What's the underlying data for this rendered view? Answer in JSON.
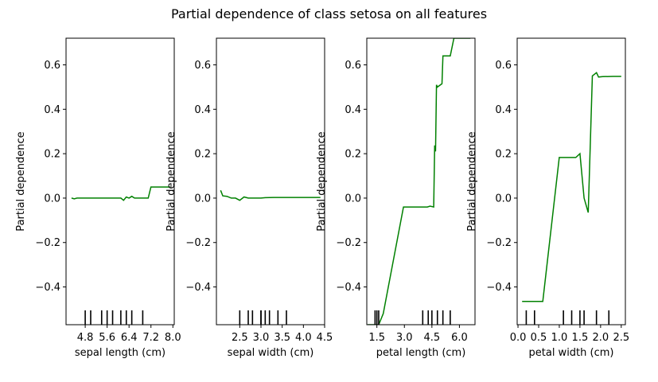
{
  "chart_data": {
    "suptitle": "Partial dependence of class setosa on all features",
    "type": "line",
    "line_color": "#008000",
    "grid": false,
    "legend": "none",
    "charts": [
      {
        "type": "line",
        "xlabel": "sepal length (cm)",
        "ylabel": "Partial dependence",
        "xlim": [
          4.1,
          8.05
        ],
        "ylim": [
          -0.57,
          0.72
        ],
        "xticks": [
          4.8,
          5.6,
          6.4,
          7.2,
          8.0
        ],
        "xtick_labels": [
          "4.8",
          "5.6",
          "6.4",
          "7.2",
          "8.0"
        ],
        "yticks": [
          -0.4,
          -0.2,
          0.0,
          0.2,
          0.4,
          0.6
        ],
        "ytick_labels": [
          "−0.4",
          "−0.2",
          "0.0",
          "0.2",
          "0.4",
          "0.6"
        ],
        "x": [
          4.3,
          4.4,
          4.5,
          4.9,
          5.3,
          5.7,
          6.1,
          6.2,
          6.3,
          6.4,
          6.5,
          6.6,
          6.7,
          6.9,
          7.1,
          7.2,
          7.3,
          7.9
        ],
        "y": [
          0.0,
          -0.003,
          0.0,
          0.0,
          0.0,
          0.0,
          0.0,
          -0.01,
          0.005,
          0.0,
          0.008,
          0.0,
          0.0,
          0.0,
          0.0,
          0.05,
          0.05,
          0.05
        ],
        "deciles": [
          4.8,
          5.0,
          5.4,
          5.6,
          5.8,
          6.1,
          6.3,
          6.5,
          6.9
        ]
      },
      {
        "type": "line",
        "xlabel": "sepal width (cm)",
        "ylabel": "Partial dependence",
        "xlim": [
          1.95,
          4.5
        ],
        "ylim": [
          -0.57,
          0.72
        ],
        "xticks": [
          2.5,
          3.0,
          3.5,
          4.0,
          4.5
        ],
        "xtick_labels": [
          "2.5",
          "3.0",
          "3.5",
          "4.0",
          "4.5"
        ],
        "yticks": [
          -0.4,
          -0.2,
          0.0,
          0.2,
          0.4,
          0.6
        ],
        "ytick_labels": [
          "−0.4",
          "−0.2",
          "0.0",
          "0.2",
          "0.4",
          "0.6"
        ],
        "x": [
          2.05,
          2.1,
          2.2,
          2.3,
          2.4,
          2.5,
          2.6,
          2.7,
          2.8,
          2.9,
          3.0,
          3.1,
          3.3,
          3.5,
          4.4
        ],
        "y": [
          0.035,
          0.01,
          0.008,
          0.0,
          0.0,
          -0.01,
          0.005,
          0.0,
          0.0,
          0.0,
          0.0,
          0.002,
          0.003,
          0.003,
          0.003
        ],
        "deciles": [
          2.5,
          2.7,
          2.8,
          3.0,
          3.0,
          3.1,
          3.2,
          3.4,
          3.6
        ]
      },
      {
        "type": "line",
        "xlabel": "petal length (cm)",
        "ylabel": "Partial dependence",
        "xlim": [
          0.95,
          6.85
        ],
        "ylim": [
          -0.57,
          0.72
        ],
        "xticks": [
          1.5,
          3.0,
          4.5,
          6.0
        ],
        "xtick_labels": [
          "1.5",
          "3.0",
          "4.5",
          "6.0"
        ],
        "yticks": [
          -0.4,
          -0.2,
          0.0,
          0.2,
          0.4,
          0.6
        ],
        "ytick_labels": [
          "−0.4",
          "−0.2",
          "0.0",
          "0.2",
          "0.4",
          "0.6"
        ],
        "x": [
          1.0,
          1.6,
          1.85,
          2.95,
          4.0,
          4.25,
          4.4,
          4.6,
          4.65,
          4.7,
          4.75,
          4.8,
          5.05,
          5.1,
          5.45,
          5.5,
          5.7,
          6.6
        ],
        "y": [
          -0.57,
          -0.57,
          -0.52,
          -0.04,
          -0.04,
          -0.04,
          -0.036,
          -0.04,
          0.237,
          0.21,
          0.51,
          0.5,
          0.515,
          0.64,
          0.64,
          0.64,
          0.72,
          0.72
        ],
        "deciles": [
          1.4,
          1.5,
          1.6,
          4.0,
          4.3,
          4.5,
          4.8,
          5.1,
          5.5
        ]
      },
      {
        "type": "line",
        "xlabel": "petal width (cm)",
        "ylabel": "Partial dependence",
        "xlim": [
          -0.02,
          2.6
        ],
        "ylim": [
          -0.57,
          0.72
        ],
        "xticks": [
          0.0,
          0.5,
          1.0,
          1.5,
          2.0,
          2.5
        ],
        "xtick_labels": [
          "0.0",
          "0.5",
          "1.0",
          "1.5",
          "2.0",
          "2.5"
        ],
        "yticks": [
          -0.4,
          -0.2,
          0.0,
          0.2,
          0.4,
          0.6
        ],
        "ytick_labels": [
          "−0.4",
          "−0.2",
          "0.0",
          "0.2",
          "0.4",
          "0.6"
        ],
        "x": [
          0.1,
          0.6,
          1.0,
          1.4,
          1.5,
          1.6,
          1.7,
          1.8,
          1.9,
          1.95,
          2.05,
          2.3,
          2.5
        ],
        "y": [
          -0.465,
          -0.465,
          0.183,
          0.183,
          0.2,
          0.0,
          -0.065,
          0.55,
          0.565,
          0.545,
          0.547,
          0.548,
          0.548
        ],
        "deciles": [
          0.2,
          0.4,
          1.1,
          1.3,
          1.5,
          1.6,
          1.9,
          2.2
        ]
      }
    ]
  }
}
